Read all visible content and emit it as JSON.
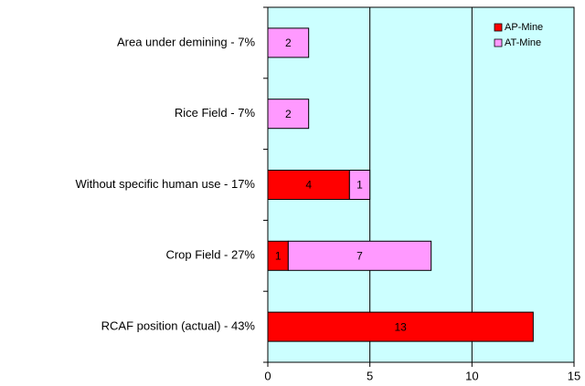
{
  "chart_data": {
    "type": "bar",
    "orientation": "horizontal",
    "stacked": true,
    "categories": [
      "Area under demining - 7%",
      "Rice Field - 7%",
      "Without specific human use - 17%",
      "Crop Field - 27%",
      "RCAF position (actual) - 43%"
    ],
    "series": [
      {
        "name": "AP-Mine",
        "color": "#ff0000",
        "values": [
          0,
          0,
          4,
          1,
          13
        ]
      },
      {
        "name": "AT-Mine",
        "color": "#ff99ff",
        "values": [
          2,
          2,
          1,
          7,
          0
        ]
      }
    ],
    "xlim": [
      0,
      15
    ],
    "xticks": [
      0,
      5,
      10,
      15
    ],
    "grid": true,
    "legend": "upper right",
    "background": "#ccffff"
  }
}
